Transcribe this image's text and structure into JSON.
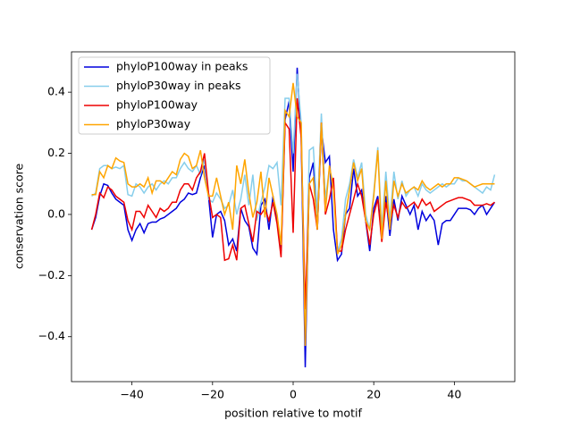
{
  "chart_data": {
    "type": "line",
    "xlabel": "position relative to motif",
    "ylabel": "conservation score",
    "x": [
      -50,
      -49,
      -48,
      -47,
      -46,
      -45,
      -44,
      -43,
      -42,
      -41,
      -40,
      -39,
      -38,
      -37,
      -36,
      -35,
      -34,
      -33,
      -32,
      -31,
      -30,
      -29,
      -28,
      -27,
      -26,
      -25,
      -24,
      -23,
      -22,
      -21,
      -20,
      -19,
      -18,
      -17,
      -16,
      -15,
      -14,
      -13,
      -12,
      -11,
      -10,
      -9,
      -8,
      -7,
      -6,
      -5,
      -4,
      -3,
      -2,
      -1,
      0,
      1,
      2,
      3,
      4,
      5,
      6,
      7,
      8,
      9,
      10,
      11,
      12,
      13,
      14,
      15,
      16,
      17,
      18,
      19,
      20,
      21,
      22,
      23,
      24,
      25,
      26,
      27,
      28,
      29,
      30,
      31,
      32,
      33,
      34,
      35,
      36,
      37,
      38,
      39,
      40,
      41,
      42,
      43,
      44,
      45,
      46,
      47,
      48,
      49,
      50
    ],
    "series": [
      {
        "name": "phyloP100way in peaks",
        "color": "#0000dd",
        "values": [
          -0.05,
          -0.01,
          0.06,
          0.1,
          0.095,
          0.07,
          0.05,
          0.04,
          0.03,
          -0.05,
          -0.085,
          -0.05,
          -0.03,
          -0.06,
          -0.03,
          -0.025,
          -0.025,
          -0.015,
          -0.01,
          0.0,
          0.01,
          0.02,
          0.04,
          0.05,
          0.07,
          0.065,
          0.07,
          0.12,
          0.16,
          0.06,
          -0.075,
          0.0,
          0.01,
          -0.02,
          -0.1,
          -0.08,
          -0.12,
          0.02,
          -0.02,
          -0.04,
          -0.11,
          -0.13,
          0.03,
          0.05,
          -0.05,
          0.06,
          -0.02,
          -0.12,
          0.31,
          0.37,
          0.14,
          0.48,
          0.25,
          -0.5,
          0.12,
          0.17,
          -0.05,
          0.28,
          0.17,
          0.19,
          -0.05,
          -0.15,
          -0.13,
          0.0,
          0.02,
          0.15,
          0.06,
          0.08,
          -0.02,
          -0.12,
          0.02,
          0.06,
          -0.08,
          0.06,
          -0.07,
          0.05,
          -0.02,
          0.06,
          0.03,
          0.0,
          0.03,
          -0.05,
          0.01,
          -0.02,
          0.0,
          -0.02,
          -0.1,
          -0.03,
          -0.02,
          -0.02,
          0.0,
          0.02,
          0.02,
          0.02,
          0.015,
          0.0,
          0.02,
          0.03,
          0.0,
          0.02,
          0.04
        ]
      },
      {
        "name": "phyloP30way in peaks",
        "color": "#87ceeb",
        "values": [
          0.06,
          0.07,
          0.15,
          0.16,
          0.16,
          0.15,
          0.155,
          0.15,
          0.16,
          0.065,
          0.06,
          0.1,
          0.09,
          0.07,
          0.09,
          0.1,
          0.08,
          0.1,
          0.11,
          0.1,
          0.12,
          0.12,
          0.15,
          0.17,
          0.15,
          0.14,
          0.16,
          0.13,
          0.18,
          0.05,
          0.04,
          0.07,
          0.05,
          0.02,
          0.03,
          0.08,
          0.0,
          0.05,
          0.13,
          0.03,
          0.13,
          -0.02,
          0.04,
          0.09,
          0.16,
          0.15,
          0.17,
          0.03,
          0.38,
          0.38,
          0.2,
          0.46,
          0.3,
          -0.38,
          0.21,
          0.22,
          0.0,
          0.33,
          0.05,
          0.15,
          0.1,
          -0.12,
          -0.08,
          0.05,
          0.1,
          0.18,
          0.12,
          0.17,
          0.0,
          -0.05,
          0.07,
          0.22,
          -0.05,
          0.14,
          -0.02,
          0.14,
          0.05,
          0.11,
          0.06,
          0.08,
          0.09,
          0.06,
          0.1,
          0.08,
          0.07,
          0.08,
          0.09,
          0.1,
          0.09,
          0.1,
          0.1,
          0.12,
          0.11,
          0.11,
          0.1,
          0.09,
          0.08,
          0.07,
          0.09,
          0.08,
          0.13
        ]
      },
      {
        "name": "phyloP100way",
        "color": "#ee0000",
        "values": [
          -0.05,
          0.0,
          0.07,
          0.055,
          0.09,
          0.08,
          0.06,
          0.05,
          0.04,
          -0.02,
          -0.05,
          0.01,
          0.01,
          -0.01,
          0.03,
          0.01,
          -0.01,
          0.02,
          0.01,
          0.02,
          0.04,
          0.04,
          0.08,
          0.1,
          0.1,
          0.08,
          0.12,
          0.14,
          0.2,
          0.07,
          -0.01,
          0.0,
          -0.01,
          -0.15,
          -0.145,
          -0.1,
          -0.15,
          0.02,
          0.03,
          -0.03,
          -0.09,
          0.01,
          0.0,
          0.02,
          -0.02,
          0.04,
          -0.03,
          -0.14,
          0.3,
          0.28,
          -0.06,
          0.38,
          0.25,
          -0.31,
          0.1,
          0.05,
          -0.05,
          0.3,
          0.0,
          0.05,
          0.12,
          -0.12,
          -0.12,
          -0.05,
          0.0,
          0.05,
          0.1,
          0.06,
          -0.02,
          -0.1,
          0.0,
          0.05,
          -0.09,
          0.04,
          -0.03,
          0.03,
          -0.01,
          0.04,
          0.02,
          0.03,
          0.04,
          0.02,
          0.05,
          0.03,
          0.04,
          0.01,
          0.02,
          0.03,
          0.04,
          0.045,
          0.05,
          0.055,
          0.055,
          0.05,
          0.045,
          0.03,
          0.03,
          0.03,
          0.035,
          0.03,
          0.04
        ]
      },
      {
        "name": "phyloP30way",
        "color": "#ffa500",
        "values": [
          0.065,
          0.065,
          0.14,
          0.12,
          0.16,
          0.15,
          0.185,
          0.175,
          0.17,
          0.1,
          0.09,
          0.09,
          0.1,
          0.09,
          0.12,
          0.07,
          0.11,
          0.11,
          0.1,
          0.12,
          0.14,
          0.13,
          0.18,
          0.2,
          0.19,
          0.15,
          0.16,
          0.21,
          0.12,
          0.06,
          0.06,
          0.12,
          0.06,
          0.0,
          0.04,
          -0.05,
          0.16,
          0.1,
          0.18,
          0.07,
          -0.01,
          0.04,
          0.14,
          -0.01,
          0.12,
          0.06,
          0.0,
          -0.1,
          0.34,
          0.32,
          0.43,
          0.32,
          0.3,
          -0.43,
          0.1,
          0.12,
          -0.05,
          0.3,
          0.01,
          0.16,
          0.08,
          -0.13,
          -0.1,
          0.0,
          0.08,
          0.17,
          0.11,
          0.15,
          -0.02,
          -0.05,
          0.06,
          0.21,
          -0.08,
          0.11,
          -0.05,
          0.11,
          0.06,
          0.1,
          0.07,
          0.08,
          0.09,
          0.08,
          0.11,
          0.09,
          0.08,
          0.09,
          0.1,
          0.09,
          0.1,
          0.1,
          0.12,
          0.12,
          0.115,
          0.11,
          0.1,
          0.09,
          0.095,
          0.1,
          0.1,
          0.1,
          0.1
        ]
      }
    ],
    "xlim": [
      -55,
      55
    ],
    "ylim": [
      -0.547,
      0.532
    ],
    "xticks": [
      {
        "value": -40,
        "label": "−40"
      },
      {
        "value": -20,
        "label": "−20"
      },
      0,
      20,
      40
    ],
    "yticks": [
      {
        "value": -0.4,
        "label": "−0.4"
      },
      {
        "value": -0.2,
        "label": "−0.2"
      },
      {
        "value": 0,
        "label": "0.0"
      },
      0.2,
      0.4
    ],
    "legend": "upper left"
  }
}
